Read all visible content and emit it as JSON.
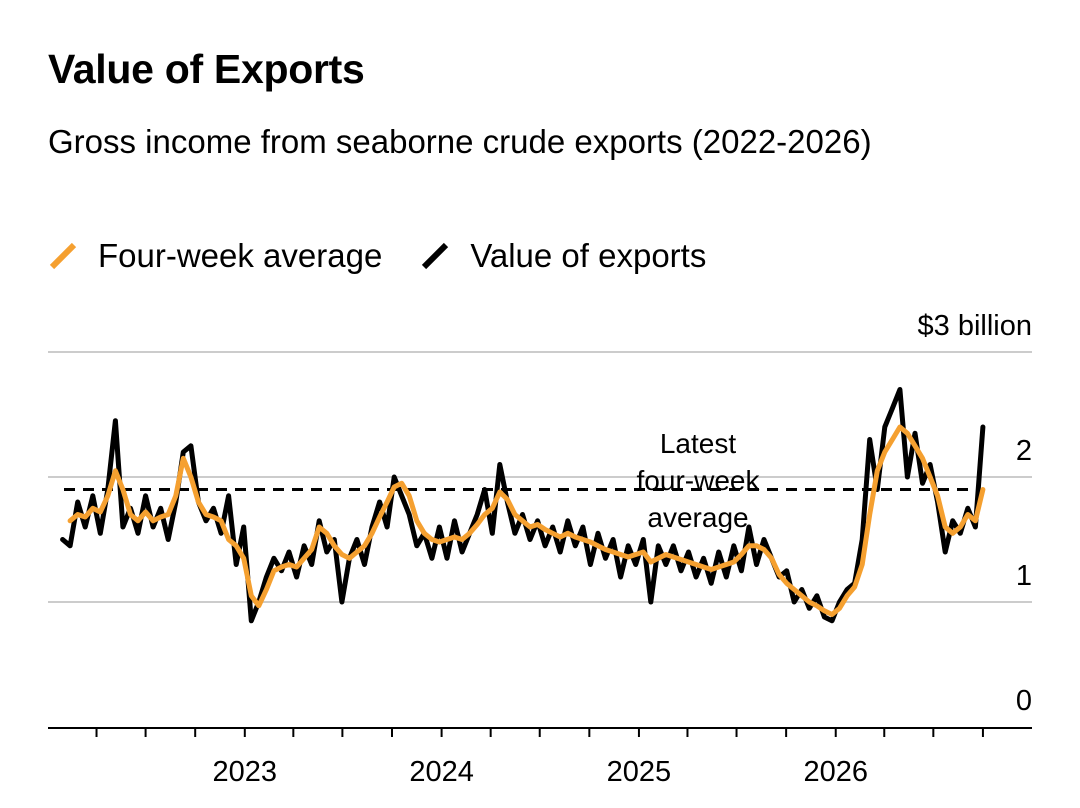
{
  "chart_data": {
    "type": "line",
    "title": "Value of Exports",
    "subtitle": "Gross income from seaborne crude exports (2022-2026)",
    "y_unit_label": "$3 billion",
    "ylim": [
      0,
      3
    ],
    "y_ticks": [
      {
        "value": 3,
        "label": "$3 billion"
      },
      {
        "value": 2,
        "label": "2"
      },
      {
        "value": 1,
        "label": "1"
      },
      {
        "value": 0,
        "label": "0"
      }
    ],
    "x_start": "2022-01",
    "x_end": "2026-12",
    "x_tick_labels": [
      {
        "date": "2023-01",
        "label": "2023"
      },
      {
        "date": "2024-01",
        "label": "2024"
      },
      {
        "date": "2025-01",
        "label": "2025"
      },
      {
        "date": "2026-01",
        "label": "2026"
      }
    ],
    "grid": true,
    "legend_position": "top-left",
    "annotation": {
      "lines": [
        "Latest",
        "four-week",
        "average"
      ],
      "value": 1.9
    },
    "series": [
      {
        "name": "Value of exports",
        "color": "#000000",
        "points": [
          [
            "2022-01-28",
            1.5
          ],
          [
            "2022-02-11",
            1.45
          ],
          [
            "2022-02-25",
            1.8
          ],
          [
            "2022-03-11",
            1.6
          ],
          [
            "2022-03-25",
            1.85
          ],
          [
            "2022-04-08",
            1.55
          ],
          [
            "2022-04-22",
            1.9
          ],
          [
            "2022-05-06",
            2.45
          ],
          [
            "2022-05-20",
            1.6
          ],
          [
            "2022-06-03",
            1.75
          ],
          [
            "2022-06-17",
            1.55
          ],
          [
            "2022-07-01",
            1.85
          ],
          [
            "2022-07-15",
            1.6
          ],
          [
            "2022-07-29",
            1.75
          ],
          [
            "2022-08-12",
            1.5
          ],
          [
            "2022-08-26",
            1.8
          ],
          [
            "2022-09-09",
            2.2
          ],
          [
            "2022-09-23",
            2.25
          ],
          [
            "2022-10-07",
            1.8
          ],
          [
            "2022-10-21",
            1.65
          ],
          [
            "2022-11-04",
            1.75
          ],
          [
            "2022-11-18",
            1.55
          ],
          [
            "2022-12-02",
            1.85
          ],
          [
            "2022-12-16",
            1.3
          ],
          [
            "2022-12-30",
            1.6
          ],
          [
            "2023-01-13",
            0.85
          ],
          [
            "2023-01-27",
            1.0
          ],
          [
            "2023-02-10",
            1.2
          ],
          [
            "2023-02-24",
            1.35
          ],
          [
            "2023-03-10",
            1.25
          ],
          [
            "2023-03-24",
            1.4
          ],
          [
            "2023-04-07",
            1.2
          ],
          [
            "2023-04-21",
            1.45
          ],
          [
            "2023-05-05",
            1.3
          ],
          [
            "2023-05-19",
            1.65
          ],
          [
            "2023-06-02",
            1.4
          ],
          [
            "2023-06-16",
            1.5
          ],
          [
            "2023-06-30",
            1.0
          ],
          [
            "2023-07-14",
            1.35
          ],
          [
            "2023-07-28",
            1.5
          ],
          [
            "2023-08-11",
            1.3
          ],
          [
            "2023-08-25",
            1.6
          ],
          [
            "2023-09-08",
            1.8
          ],
          [
            "2023-09-22",
            1.6
          ],
          [
            "2023-10-05",
            2.0
          ],
          [
            "2023-10-19",
            1.85
          ],
          [
            "2023-11-02",
            1.7
          ],
          [
            "2023-11-16",
            1.45
          ],
          [
            "2023-11-30",
            1.55
          ],
          [
            "2023-12-14",
            1.35
          ],
          [
            "2023-12-28",
            1.6
          ],
          [
            "2024-01-11",
            1.35
          ],
          [
            "2024-01-25",
            1.65
          ],
          [
            "2024-02-08",
            1.4
          ],
          [
            "2024-02-22",
            1.55
          ],
          [
            "2024-03-07",
            1.7
          ],
          [
            "2024-03-21",
            1.9
          ],
          [
            "2024-04-04",
            1.55
          ],
          [
            "2024-04-18",
            2.1
          ],
          [
            "2024-05-02",
            1.8
          ],
          [
            "2024-05-16",
            1.55
          ],
          [
            "2024-05-30",
            1.7
          ],
          [
            "2024-06-13",
            1.5
          ],
          [
            "2024-06-27",
            1.65
          ],
          [
            "2024-07-11",
            1.45
          ],
          [
            "2024-07-25",
            1.6
          ],
          [
            "2024-08-08",
            1.4
          ],
          [
            "2024-08-22",
            1.65
          ],
          [
            "2024-09-05",
            1.45
          ],
          [
            "2024-09-19",
            1.6
          ],
          [
            "2024-10-03",
            1.3
          ],
          [
            "2024-10-17",
            1.55
          ],
          [
            "2024-10-31",
            1.35
          ],
          [
            "2024-11-14",
            1.5
          ],
          [
            "2024-11-28",
            1.2
          ],
          [
            "2024-12-12",
            1.45
          ],
          [
            "2024-12-26",
            1.3
          ],
          [
            "2025-01-09",
            1.5
          ],
          [
            "2025-01-23",
            1.0
          ],
          [
            "2025-02-06",
            1.45
          ],
          [
            "2025-02-20",
            1.3
          ],
          [
            "2025-03-06",
            1.45
          ],
          [
            "2025-03-20",
            1.25
          ],
          [
            "2025-04-03",
            1.4
          ],
          [
            "2025-04-17",
            1.2
          ],
          [
            "2025-05-01",
            1.35
          ],
          [
            "2025-05-15",
            1.15
          ],
          [
            "2025-05-29",
            1.4
          ],
          [
            "2025-06-12",
            1.2
          ],
          [
            "2025-06-26",
            1.45
          ],
          [
            "2025-07-10",
            1.25
          ],
          [
            "2025-07-24",
            1.6
          ],
          [
            "2025-08-07",
            1.3
          ],
          [
            "2025-08-21",
            1.5
          ],
          [
            "2025-09-04",
            1.35
          ],
          [
            "2025-09-18",
            1.2
          ],
          [
            "2025-10-02",
            1.25
          ],
          [
            "2025-10-16",
            1.0
          ],
          [
            "2025-10-30",
            1.1
          ],
          [
            "2025-11-13",
            0.95
          ],
          [
            "2025-11-27",
            1.05
          ],
          [
            "2025-12-11",
            0.88
          ],
          [
            "2025-12-25",
            0.85
          ],
          [
            "2026-01-08",
            1.0
          ],
          [
            "2026-01-22",
            1.1
          ],
          [
            "2026-02-05",
            1.15
          ],
          [
            "2026-02-19",
            1.5
          ],
          [
            "2026-03-05",
            2.3
          ],
          [
            "2026-03-19",
            1.9
          ],
          [
            "2026-04-02",
            2.4
          ],
          [
            "2026-04-16",
            2.55
          ],
          [
            "2026-04-30",
            2.7
          ],
          [
            "2026-05-14",
            2.0
          ],
          [
            "2026-05-28",
            2.35
          ],
          [
            "2026-06-11",
            1.95
          ],
          [
            "2026-06-25",
            2.1
          ],
          [
            "2026-07-09",
            1.8
          ],
          [
            "2026-07-23",
            1.4
          ],
          [
            "2026-08-06",
            1.65
          ],
          [
            "2026-08-20",
            1.55
          ],
          [
            "2026-09-03",
            1.75
          ],
          [
            "2026-09-17",
            1.6
          ],
          [
            "2026-10-01",
            2.4
          ]
        ]
      },
      {
        "name": "Four-week average",
        "color": "#f5a030",
        "points": [
          [
            "2022-02-11",
            1.65
          ],
          [
            "2022-02-25",
            1.7
          ],
          [
            "2022-03-11",
            1.68
          ],
          [
            "2022-03-25",
            1.75
          ],
          [
            "2022-04-08",
            1.72
          ],
          [
            "2022-04-22",
            1.85
          ],
          [
            "2022-05-06",
            2.05
          ],
          [
            "2022-05-20",
            1.9
          ],
          [
            "2022-06-03",
            1.7
          ],
          [
            "2022-06-17",
            1.65
          ],
          [
            "2022-07-01",
            1.72
          ],
          [
            "2022-07-15",
            1.65
          ],
          [
            "2022-07-29",
            1.68
          ],
          [
            "2022-08-12",
            1.7
          ],
          [
            "2022-08-26",
            1.85
          ],
          [
            "2022-09-09",
            2.15
          ],
          [
            "2022-09-23",
            2.0
          ],
          [
            "2022-10-07",
            1.8
          ],
          [
            "2022-10-21",
            1.7
          ],
          [
            "2022-11-04",
            1.68
          ],
          [
            "2022-11-18",
            1.65
          ],
          [
            "2022-12-02",
            1.5
          ],
          [
            "2022-12-16",
            1.45
          ],
          [
            "2022-12-30",
            1.35
          ],
          [
            "2023-01-13",
            1.05
          ],
          [
            "2023-01-27",
            0.97
          ],
          [
            "2023-02-10",
            1.1
          ],
          [
            "2023-02-24",
            1.25
          ],
          [
            "2023-03-10",
            1.28
          ],
          [
            "2023-03-24",
            1.3
          ],
          [
            "2023-04-07",
            1.28
          ],
          [
            "2023-04-21",
            1.35
          ],
          [
            "2023-05-05",
            1.42
          ],
          [
            "2023-05-19",
            1.6
          ],
          [
            "2023-06-02",
            1.55
          ],
          [
            "2023-06-16",
            1.45
          ],
          [
            "2023-06-30",
            1.38
          ],
          [
            "2023-07-14",
            1.35
          ],
          [
            "2023-07-28",
            1.4
          ],
          [
            "2023-08-11",
            1.45
          ],
          [
            "2023-08-25",
            1.55
          ],
          [
            "2023-09-08",
            1.68
          ],
          [
            "2023-09-22",
            1.8
          ],
          [
            "2023-10-05",
            1.92
          ],
          [
            "2023-10-19",
            1.95
          ],
          [
            "2023-11-02",
            1.85
          ],
          [
            "2023-11-16",
            1.65
          ],
          [
            "2023-11-30",
            1.55
          ],
          [
            "2023-12-14",
            1.5
          ],
          [
            "2023-12-28",
            1.48
          ],
          [
            "2024-01-11",
            1.5
          ],
          [
            "2024-01-25",
            1.52
          ],
          [
            "2024-02-08",
            1.5
          ],
          [
            "2024-02-22",
            1.55
          ],
          [
            "2024-03-07",
            1.62
          ],
          [
            "2024-03-21",
            1.7
          ],
          [
            "2024-04-04",
            1.75
          ],
          [
            "2024-04-18",
            1.88
          ],
          [
            "2024-05-02",
            1.82
          ],
          [
            "2024-05-16",
            1.7
          ],
          [
            "2024-05-30",
            1.65
          ],
          [
            "2024-06-13",
            1.6
          ],
          [
            "2024-06-27",
            1.62
          ],
          [
            "2024-07-11",
            1.58
          ],
          [
            "2024-07-25",
            1.55
          ],
          [
            "2024-08-08",
            1.52
          ],
          [
            "2024-08-22",
            1.55
          ],
          [
            "2024-09-05",
            1.52
          ],
          [
            "2024-09-19",
            1.5
          ],
          [
            "2024-10-03",
            1.48
          ],
          [
            "2024-10-17",
            1.45
          ],
          [
            "2024-10-31",
            1.42
          ],
          [
            "2024-11-14",
            1.4
          ],
          [
            "2024-11-28",
            1.38
          ],
          [
            "2024-12-12",
            1.36
          ],
          [
            "2024-12-26",
            1.38
          ],
          [
            "2025-01-09",
            1.4
          ],
          [
            "2025-01-23",
            1.32
          ],
          [
            "2025-02-06",
            1.35
          ],
          [
            "2025-02-20",
            1.38
          ],
          [
            "2025-03-06",
            1.36
          ],
          [
            "2025-03-20",
            1.34
          ],
          [
            "2025-04-03",
            1.32
          ],
          [
            "2025-04-17",
            1.3
          ],
          [
            "2025-05-01",
            1.28
          ],
          [
            "2025-05-15",
            1.26
          ],
          [
            "2025-05-29",
            1.28
          ],
          [
            "2025-06-12",
            1.3
          ],
          [
            "2025-06-26",
            1.32
          ],
          [
            "2025-07-10",
            1.38
          ],
          [
            "2025-07-24",
            1.45
          ],
          [
            "2025-08-07",
            1.45
          ],
          [
            "2025-08-21",
            1.42
          ],
          [
            "2025-09-04",
            1.35
          ],
          [
            "2025-09-18",
            1.22
          ],
          [
            "2025-10-02",
            1.15
          ],
          [
            "2025-10-16",
            1.1
          ],
          [
            "2025-10-30",
            1.05
          ],
          [
            "2025-11-13",
            1.0
          ],
          [
            "2025-11-27",
            0.97
          ],
          [
            "2025-12-11",
            0.93
          ],
          [
            "2025-12-25",
            0.9
          ],
          [
            "2026-01-08",
            0.95
          ],
          [
            "2026-01-22",
            1.05
          ],
          [
            "2026-02-05",
            1.12
          ],
          [
            "2026-02-19",
            1.3
          ],
          [
            "2026-03-05",
            1.7
          ],
          [
            "2026-03-19",
            2.05
          ],
          [
            "2026-04-02",
            2.2
          ],
          [
            "2026-04-16",
            2.3
          ],
          [
            "2026-04-30",
            2.4
          ],
          [
            "2026-05-14",
            2.35
          ],
          [
            "2026-05-28",
            2.25
          ],
          [
            "2026-06-11",
            2.15
          ],
          [
            "2026-06-25",
            2.0
          ],
          [
            "2026-07-09",
            1.85
          ],
          [
            "2026-07-23",
            1.6
          ],
          [
            "2026-08-06",
            1.55
          ],
          [
            "2026-08-20",
            1.6
          ],
          [
            "2026-09-03",
            1.7
          ],
          [
            "2026-09-17",
            1.65
          ],
          [
            "2026-10-01",
            1.9
          ]
        ]
      }
    ]
  }
}
